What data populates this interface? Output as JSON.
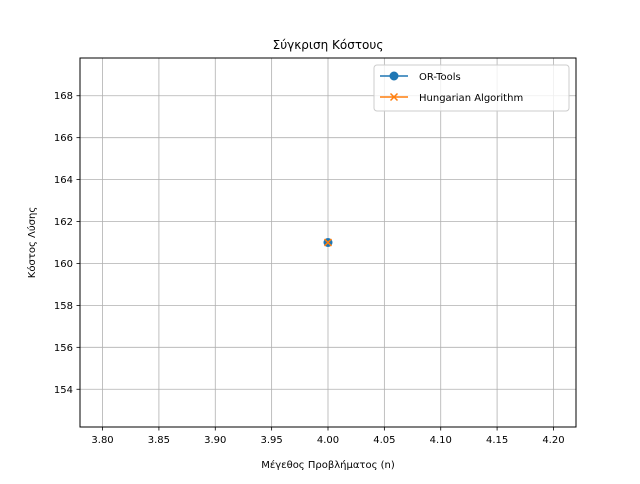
{
  "chart_data": {
    "type": "line",
    "title": "Σύγκριση Κόστους",
    "xlabel": "Μέγεθος Προβλήματος (n)",
    "ylabel": "Κόστος Λύσης",
    "xlim": [
      3.78,
      4.22
    ],
    "ylim": [
      152.2,
      169.8
    ],
    "xticks": [
      3.8,
      3.85,
      3.9,
      3.95,
      4.0,
      4.05,
      4.1,
      4.15,
      4.2
    ],
    "xtick_labels": [
      "3.80",
      "3.85",
      "3.90",
      "3.95",
      "4.00",
      "4.05",
      "4.10",
      "4.15",
      "4.20"
    ],
    "yticks": [
      154,
      156,
      158,
      160,
      162,
      164,
      166,
      168
    ],
    "ytick_labels": [
      "154",
      "156",
      "158",
      "160",
      "162",
      "164",
      "166",
      "168"
    ],
    "grid": true,
    "legend_position": "top-right",
    "series": [
      {
        "name": "OR-Tools",
        "x": [
          4
        ],
        "y": [
          161
        ],
        "color": "#1f77b4",
        "marker": "circle"
      },
      {
        "name": "Hungarian Algorithm",
        "x": [
          4
        ],
        "y": [
          161
        ],
        "color": "#ff7f0e",
        "marker": "x"
      }
    ]
  }
}
